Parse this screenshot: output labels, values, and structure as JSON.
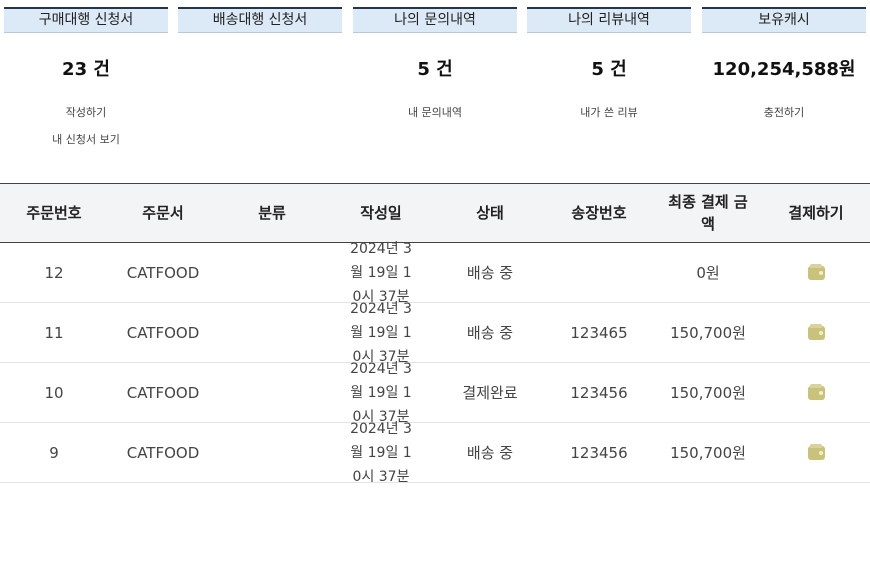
{
  "cards": [
    {
      "title": "구매대행 신청서",
      "count": "23 건",
      "links": [
        "작성하기",
        "내 신청서 보기"
      ]
    },
    {
      "title": "배송대행 신청서",
      "count": "",
      "links": []
    },
    {
      "title": "나의 문의내역",
      "count": "5 건",
      "links": [
        "내 문의내역"
      ]
    },
    {
      "title": "나의 리뷰내역",
      "count": "5 건",
      "links": [
        "내가 쓴 리뷰"
      ]
    },
    {
      "title": "보유캐시",
      "count": "120,254,588원",
      "links": [
        "충전하기"
      ]
    }
  ],
  "table": {
    "headers": [
      "주문번호",
      "주문서",
      "분류",
      "작성일",
      "상태",
      "송장번호",
      "최종 결제 금액",
      "결제하기"
    ],
    "rows": [
      {
        "no": "12",
        "form": "CATFOOD",
        "category": "",
        "date": "2024년 3월 19일 10시 37분",
        "status": "배송 중",
        "invoice": "",
        "amount": "0원",
        "pay_icon": "wallet-icon"
      },
      {
        "no": "11",
        "form": "CATFOOD",
        "category": "",
        "date": "2024년 3월 19일 10시 37분",
        "status": "배송 중",
        "invoice": "123465",
        "amount": "150,700원",
        "pay_icon": "wallet-icon"
      },
      {
        "no": "10",
        "form": "CATFOOD",
        "category": "",
        "date": "2024년 3월 19일 10시 37분",
        "status": "결제완료",
        "invoice": "123456",
        "amount": "150,700원",
        "pay_icon": "wallet-icon"
      },
      {
        "no": "9",
        "form": "CATFOOD",
        "category": "",
        "date": "2024년 3월 19일 10시 37분",
        "status": "배송 중",
        "invoice": "123456",
        "amount": "150,700원",
        "pay_icon": "wallet-icon"
      }
    ]
  },
  "colors": {
    "tab_bg": "#dce9f7",
    "tab_border": "#26364a",
    "header_bg": "#f3f4f5",
    "wallet": "#c9c27a"
  }
}
